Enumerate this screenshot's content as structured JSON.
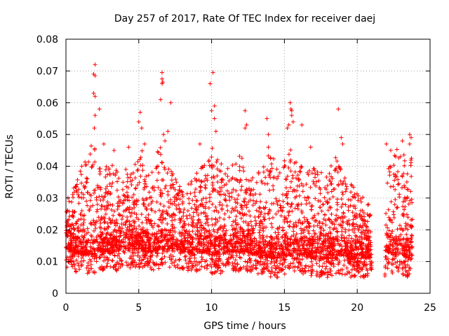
{
  "chart_data": {
    "type": "scatter",
    "title": "Day 257 of 2017, Rate Of TEC Index for receiver daej",
    "xlabel": "GPS time / hours",
    "ylabel": "ROTI / TECUs",
    "xlim": [
      0,
      25
    ],
    "ylim": [
      0,
      0.08
    ],
    "xticks": [
      "0",
      "5",
      "10",
      "15",
      "20",
      "25"
    ],
    "yticks": [
      "0",
      "0.01",
      "0.02",
      "0.03",
      "0.04",
      "0.05",
      "0.06",
      "0.07",
      "0.08"
    ],
    "grid": true,
    "marker": "+",
    "color": "#ff0000",
    "envelope": {
      "hours": [
        0.0,
        0.5,
        1.0,
        1.5,
        2.0,
        2.2,
        2.5,
        3.0,
        3.5,
        4.0,
        4.5,
        5.0,
        5.2,
        5.5,
        6.0,
        6.5,
        6.7,
        7.0,
        7.5,
        8.0,
        8.5,
        9.0,
        9.5,
        10.0,
        10.2,
        10.5,
        11.0,
        11.5,
        12.0,
        12.5,
        13.0,
        13.5,
        14.0,
        14.5,
        15.0,
        15.5,
        16.0,
        16.5,
        17.0,
        17.5,
        18.0,
        18.5,
        19.0,
        19.5,
        20.0,
        20.5,
        20.9,
        21.0,
        21.9,
        22.0,
        22.5,
        23.0,
        23.5,
        23.8
      ],
      "roti_high": [
        0.03,
        0.033,
        0.04,
        0.045,
        0.048,
        0.04,
        0.042,
        0.04,
        0.042,
        0.039,
        0.04,
        0.043,
        0.046,
        0.04,
        0.044,
        0.046,
        0.044,
        0.04,
        0.037,
        0.033,
        0.035,
        0.038,
        0.041,
        0.048,
        0.044,
        0.043,
        0.04,
        0.041,
        0.044,
        0.039,
        0.037,
        0.04,
        0.045,
        0.04,
        0.042,
        0.046,
        0.04,
        0.04,
        0.04,
        0.039,
        0.04,
        0.045,
        0.037,
        0.035,
        0.032,
        0.03,
        0.028,
        0.0,
        0.0,
        0.038,
        0.045,
        0.046,
        0.041,
        0.045
      ],
      "roti_low": [
        0.008,
        0.007,
        0.006,
        0.006,
        0.006,
        0.007,
        0.007,
        0.007,
        0.007,
        0.008,
        0.008,
        0.008,
        0.008,
        0.007,
        0.007,
        0.008,
        0.008,
        0.008,
        0.008,
        0.007,
        0.007,
        0.007,
        0.007,
        0.006,
        0.006,
        0.006,
        0.007,
        0.007,
        0.007,
        0.007,
        0.006,
        0.006,
        0.005,
        0.005,
        0.006,
        0.006,
        0.006,
        0.006,
        0.005,
        0.005,
        0.005,
        0.006,
        0.006,
        0.005,
        0.005,
        0.005,
        0.005,
        0.0,
        0.0,
        0.007,
        0.006,
        0.006,
        0.005,
        0.007
      ],
      "gaps": [
        [
          21.0,
          21.9
        ]
      ]
    },
    "outliers": [
      [
        1.9,
        0.069
      ],
      [
        2.0,
        0.072
      ],
      [
        2.0,
        0.0685
      ],
      [
        1.9,
        0.063
      ],
      [
        2.0,
        0.062
      ],
      [
        2.0,
        0.056
      ],
      [
        1.95,
        0.052
      ],
      [
        2.3,
        0.058
      ],
      [
        2.6,
        0.047
      ],
      [
        3.3,
        0.045
      ],
      [
        4.3,
        0.046
      ],
      [
        5.0,
        0.054
      ],
      [
        5.1,
        0.057
      ],
      [
        5.2,
        0.052
      ],
      [
        5.4,
        0.047
      ],
      [
        6.5,
        0.061
      ],
      [
        6.6,
        0.0695
      ],
      [
        6.6,
        0.0675
      ],
      [
        6.65,
        0.0665
      ],
      [
        6.6,
        0.066
      ],
      [
        6.7,
        0.05
      ],
      [
        6.8,
        0.048
      ],
      [
        7.2,
        0.06
      ],
      [
        7.0,
        0.051
      ],
      [
        9.2,
        0.047
      ],
      [
        9.9,
        0.066
      ],
      [
        10.0,
        0.0575
      ],
      [
        10.1,
        0.0695
      ],
      [
        10.2,
        0.059
      ],
      [
        10.2,
        0.055
      ],
      [
        10.3,
        0.051
      ],
      [
        12.3,
        0.0575
      ],
      [
        12.3,
        0.052
      ],
      [
        12.4,
        0.053
      ],
      [
        13.8,
        0.055
      ],
      [
        13.9,
        0.05
      ],
      [
        13.9,
        0.046
      ],
      [
        15.2,
        0.052
      ],
      [
        15.3,
        0.053
      ],
      [
        15.4,
        0.06
      ],
      [
        15.45,
        0.058
      ],
      [
        15.5,
        0.0575
      ],
      [
        15.5,
        0.056
      ],
      [
        15.6,
        0.054
      ],
      [
        16.2,
        0.053
      ],
      [
        16.8,
        0.046
      ],
      [
        18.7,
        0.058
      ],
      [
        18.9,
        0.049
      ],
      [
        19.0,
        0.047
      ],
      [
        22.0,
        0.047
      ],
      [
        22.3,
        0.045
      ],
      [
        23.1,
        0.048
      ],
      [
        23.6,
        0.05
      ],
      [
        23.7,
        0.049
      ],
      [
        23.6,
        0.047
      ]
    ]
  }
}
